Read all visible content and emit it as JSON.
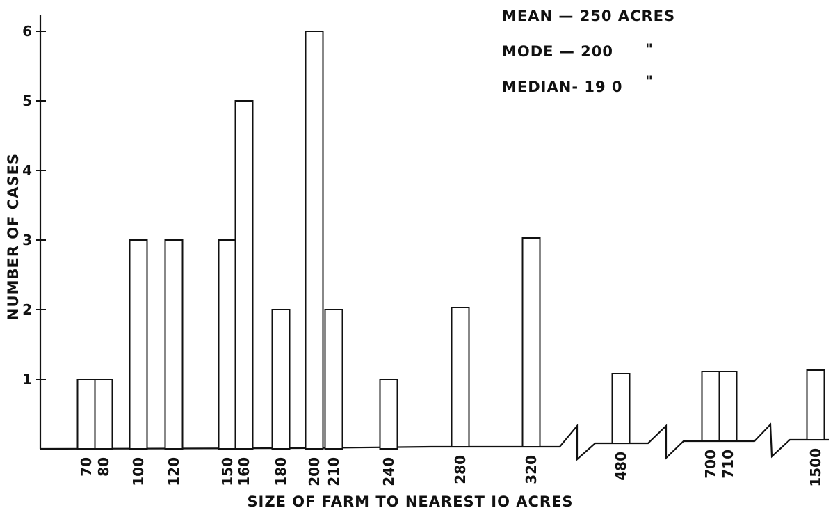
{
  "chart_data": {
    "type": "bar",
    "title": "",
    "xlabel": "SIZE OF FARM TO NEAREST IO ACRES",
    "ylabel": "NUMBER OF CASES",
    "ylim": [
      0,
      6
    ],
    "yticks": [
      "1",
      "2",
      "3",
      "4",
      "5",
      "6"
    ],
    "categories": [
      "70",
      "80",
      "100",
      "120",
      "150",
      "160",
      "180",
      "200",
      "210",
      "240",
      "280",
      "320",
      "480",
      "700",
      "710",
      "1500"
    ],
    "values": [
      1,
      1,
      3,
      3,
      3,
      5,
      2,
      6,
      2,
      1,
      2,
      3,
      1,
      1,
      1,
      1
    ],
    "axis_breaks": [
      "between 320 and 480",
      "between 480 and 700",
      "between 710 and 1500"
    ],
    "grid": false,
    "annotations": {
      "mean": "MEAN — 250 ACRES",
      "mode": "MODE — 200",
      "median": "MEDIAN- 19 0",
      "mode_ditto": "\"",
      "median_ditto": "\""
    },
    "colors": {
      "ink": "#111111",
      "paper": "#ffffff"
    }
  }
}
